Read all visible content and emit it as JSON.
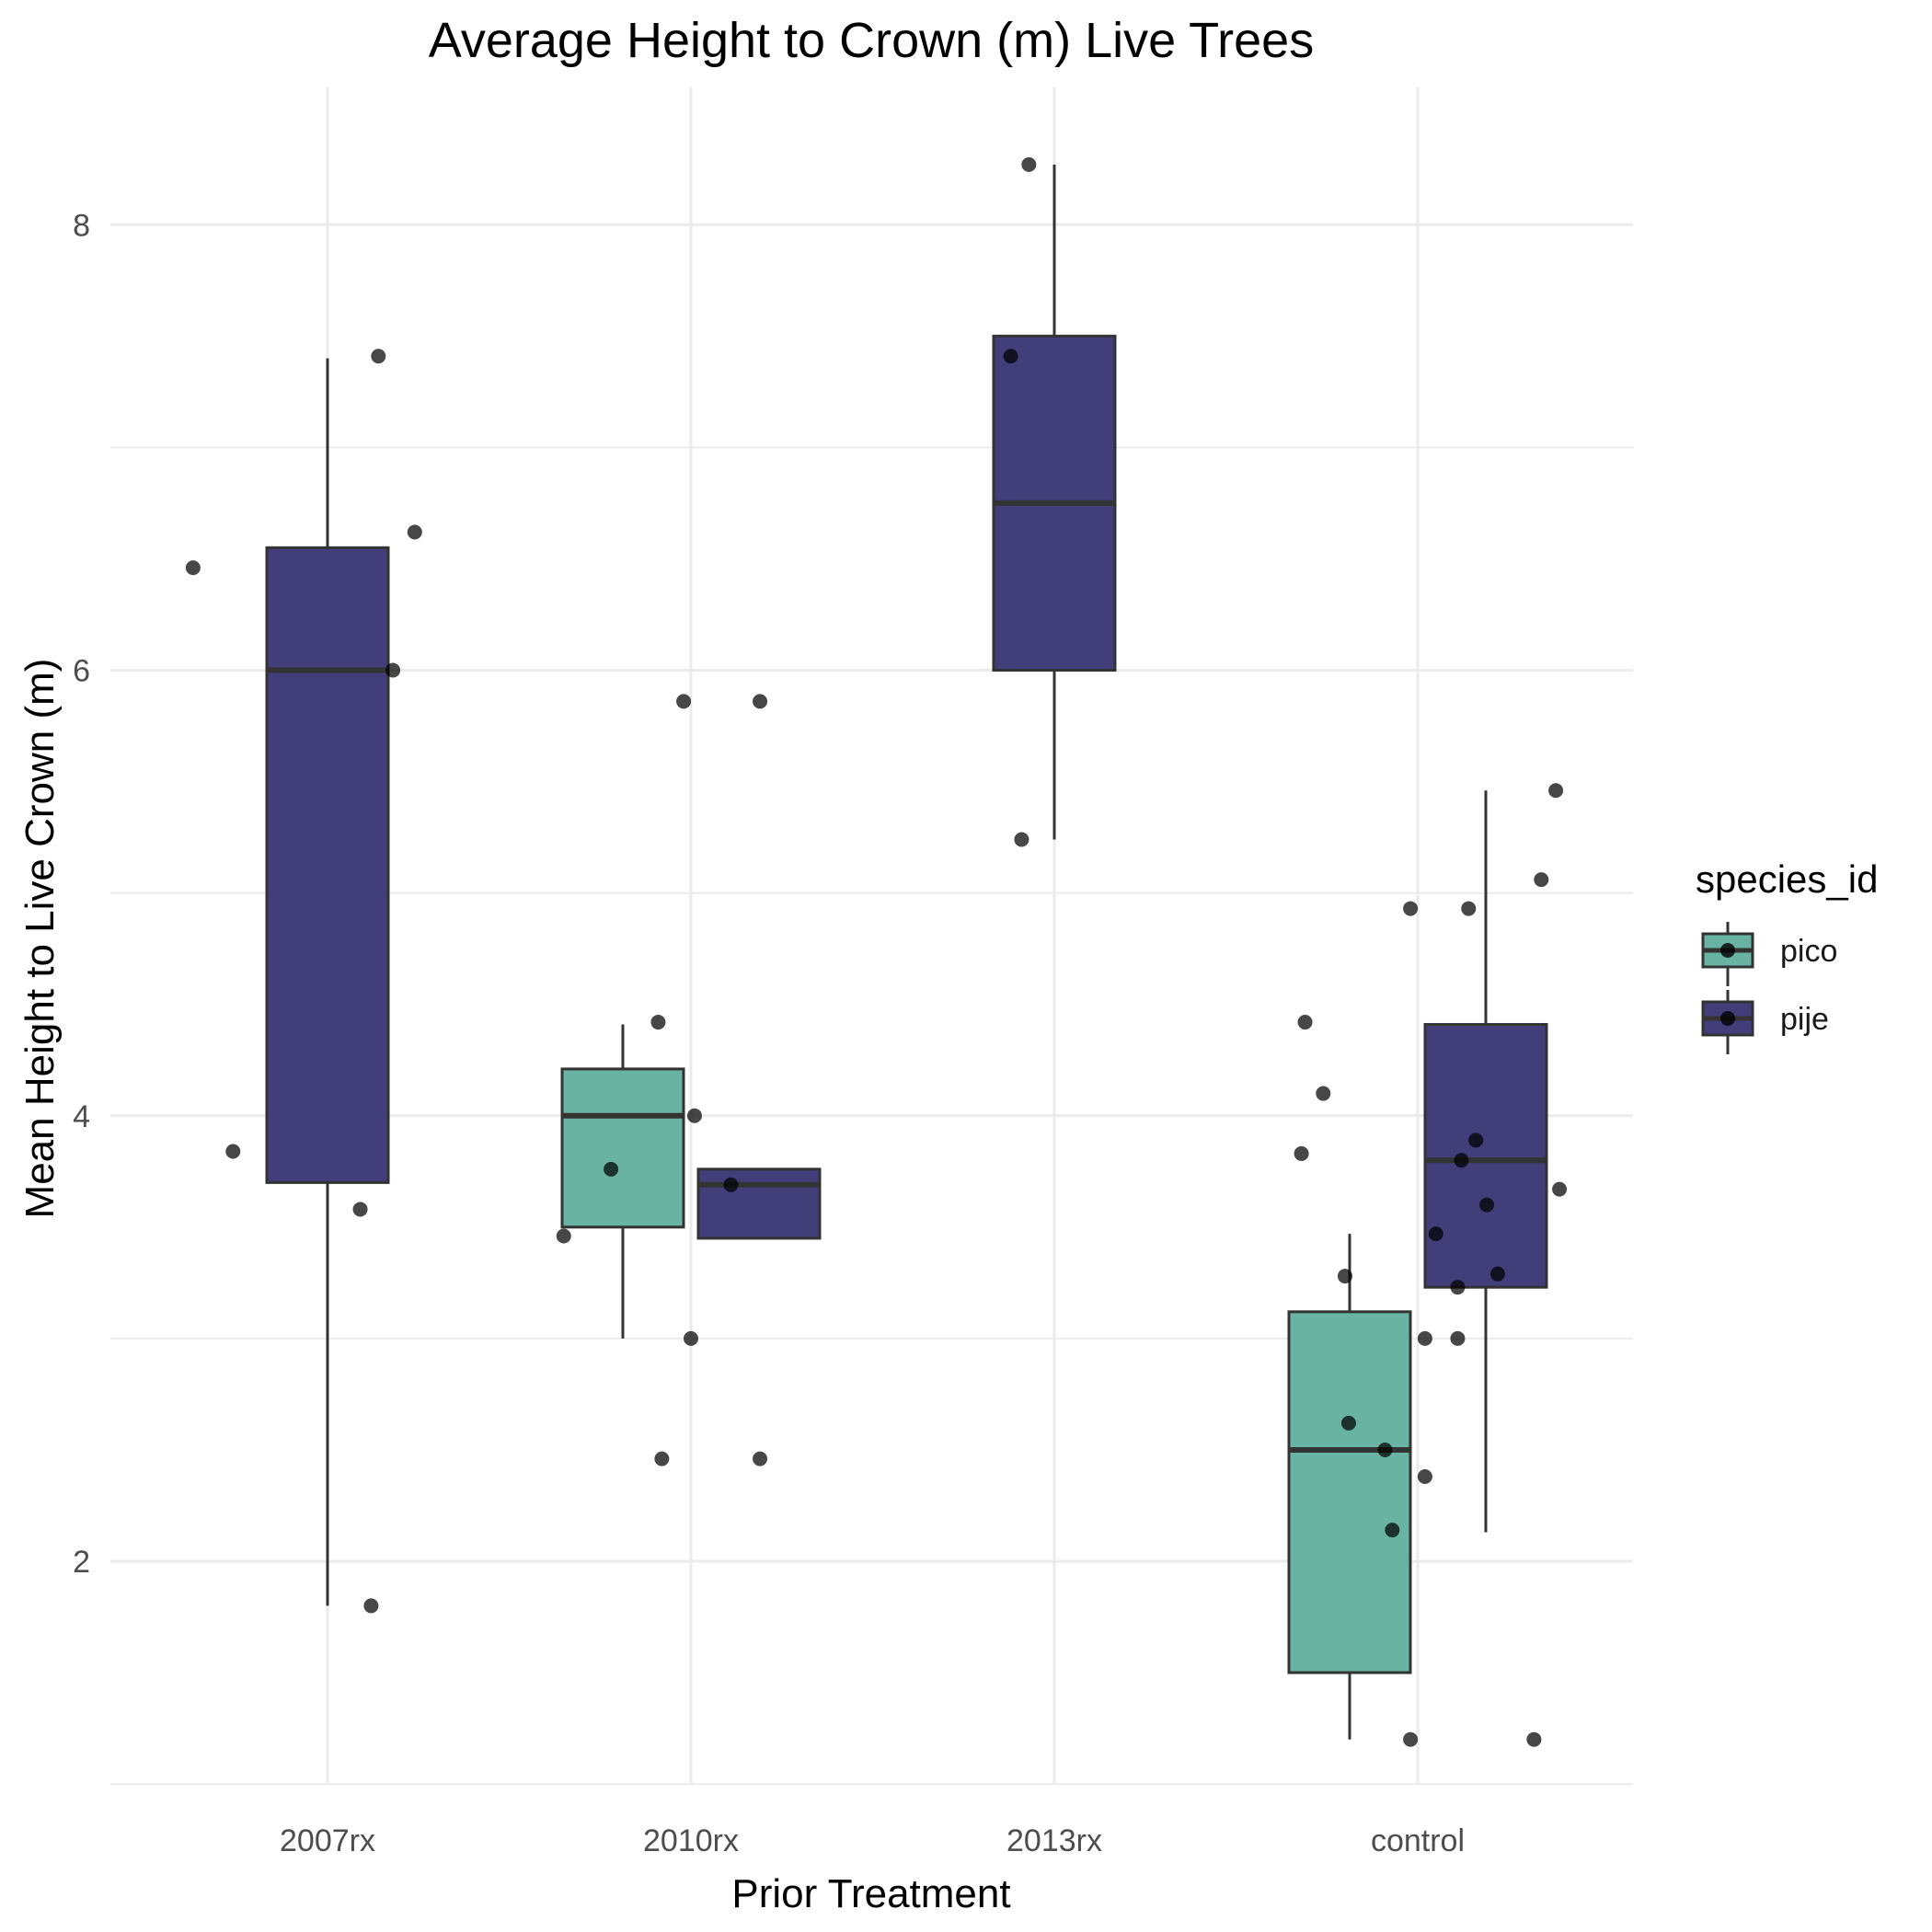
{
  "chart_data": {
    "type": "box",
    "title": "Average Height to Crown (m) Live Trees",
    "xlabel": "Prior Treatment",
    "ylabel": "Mean Height to Live Crown (m)",
    "categories": [
      "2007rx",
      "2010rx",
      "2013rx",
      "control"
    ],
    "y_ticks": [
      2,
      4,
      6,
      8
    ],
    "ylim": [
      1.0,
      8.6
    ],
    "grid": true,
    "legend": {
      "title": "species_id",
      "position": "right",
      "entries": [
        {
          "name": "pico",
          "color": "#69b3a2"
        },
        {
          "name": "pije",
          "color": "#413e7a"
        }
      ]
    },
    "series": [
      {
        "name": "pico",
        "color": "#69b3a2",
        "boxes": [
          {
            "category": "2010rx",
            "min": 3.0,
            "q1": 3.5,
            "median": 4.0,
            "q3": 4.21,
            "max": 4.41
          },
          {
            "category": "control",
            "min": 1.2,
            "q1": 1.5,
            "median": 2.5,
            "q3": 3.12,
            "max": 3.47
          }
        ]
      },
      {
        "name": "pije",
        "color": "#413e7a",
        "boxes": [
          {
            "category": "2007rx",
            "min": 1.8,
            "q1": 3.7,
            "median": 6.0,
            "q3": 6.55,
            "max": 7.4
          },
          {
            "category": "2010rx",
            "min": 3.45,
            "q1": 3.45,
            "median": 3.69,
            "q3": 3.76,
            "max": 3.76
          },
          {
            "category": "2013rx",
            "min": 5.24,
            "q1": 6.0,
            "median": 6.75,
            "q3": 7.5,
            "max": 8.27
          },
          {
            "category": "control",
            "min": 2.13,
            "q1": 3.23,
            "median": 3.8,
            "q3": 4.41,
            "max": 5.46
          }
        ]
      }
    ],
    "points": [
      {
        "category": "2007rx",
        "x_offset": -0.37,
        "y": 6.46
      },
      {
        "category": "2007rx",
        "x_offset": 0.14,
        "y": 7.41
      },
      {
        "category": "2007rx",
        "x_offset": 0.24,
        "y": 6.62
      },
      {
        "category": "2007rx",
        "x_offset": 0.18,
        "y": 6.0
      },
      {
        "category": "2007rx",
        "x_offset": -0.26,
        "y": 3.84
      },
      {
        "category": "2007rx",
        "x_offset": 0.09,
        "y": 3.58
      },
      {
        "category": "2007rx",
        "x_offset": 0.12,
        "y": 1.8
      },
      {
        "category": "2010rx",
        "x_offset": -0.02,
        "y": 5.86
      },
      {
        "category": "2010rx",
        "x_offset": 0.19,
        "y": 5.86
      },
      {
        "category": "2010rx",
        "x_offset": -0.09,
        "y": 4.42
      },
      {
        "category": "2010rx",
        "x_offset": 0.01,
        "y": 4.0
      },
      {
        "category": "2010rx",
        "x_offset": -0.22,
        "y": 3.76
      },
      {
        "category": "2010rx",
        "x_offset": 0.11,
        "y": 3.69
      },
      {
        "category": "2010rx",
        "x_offset": -0.35,
        "y": 3.46
      },
      {
        "category": "2010rx",
        "x_offset": 0.0,
        "y": 3.0
      },
      {
        "category": "2010rx",
        "x_offset": -0.08,
        "y": 2.46
      },
      {
        "category": "2010rx",
        "x_offset": 0.19,
        "y": 2.46
      },
      {
        "category": "2013rx",
        "x_offset": -0.07,
        "y": 8.27
      },
      {
        "category": "2013rx",
        "x_offset": -0.12,
        "y": 7.41
      },
      {
        "category": "2013rx",
        "x_offset": -0.09,
        "y": 5.24
      },
      {
        "category": "control",
        "x_offset": -0.31,
        "y": 4.42
      },
      {
        "category": "control",
        "x_offset": -0.26,
        "y": 4.1
      },
      {
        "category": "control",
        "x_offset": -0.32,
        "y": 3.83
      },
      {
        "category": "control",
        "x_offset": -0.2,
        "y": 3.28
      },
      {
        "category": "control",
        "x_offset": -0.19,
        "y": 2.62
      },
      {
        "category": "control",
        "x_offset": -0.09,
        "y": 2.5
      },
      {
        "category": "control",
        "x_offset": -0.07,
        "y": 2.14
      },
      {
        "category": "control",
        "x_offset": 0.02,
        "y": 2.38
      },
      {
        "category": "control",
        "x_offset": 0.02,
        "y": 3.0
      },
      {
        "category": "control",
        "x_offset": -0.02,
        "y": 1.2
      },
      {
        "category": "control",
        "x_offset": -0.02,
        "y": 4.93
      },
      {
        "category": "control",
        "x_offset": 0.14,
        "y": 4.93
      },
      {
        "category": "control",
        "x_offset": 0.34,
        "y": 5.06
      },
      {
        "category": "control",
        "x_offset": 0.38,
        "y": 5.46
      },
      {
        "category": "control",
        "x_offset": 0.16,
        "y": 3.89
      },
      {
        "category": "control",
        "x_offset": 0.12,
        "y": 3.8
      },
      {
        "category": "control",
        "x_offset": 0.19,
        "y": 3.6
      },
      {
        "category": "control",
        "x_offset": 0.39,
        "y": 3.67
      },
      {
        "category": "control",
        "x_offset": 0.05,
        "y": 3.47
      },
      {
        "category": "control",
        "x_offset": 0.22,
        "y": 3.29
      },
      {
        "category": "control",
        "x_offset": 0.11,
        "y": 3.23
      },
      {
        "category": "control",
        "x_offset": 0.11,
        "y": 3.0
      },
      {
        "category": "control",
        "x_offset": 0.32,
        "y": 1.2
      }
    ]
  }
}
